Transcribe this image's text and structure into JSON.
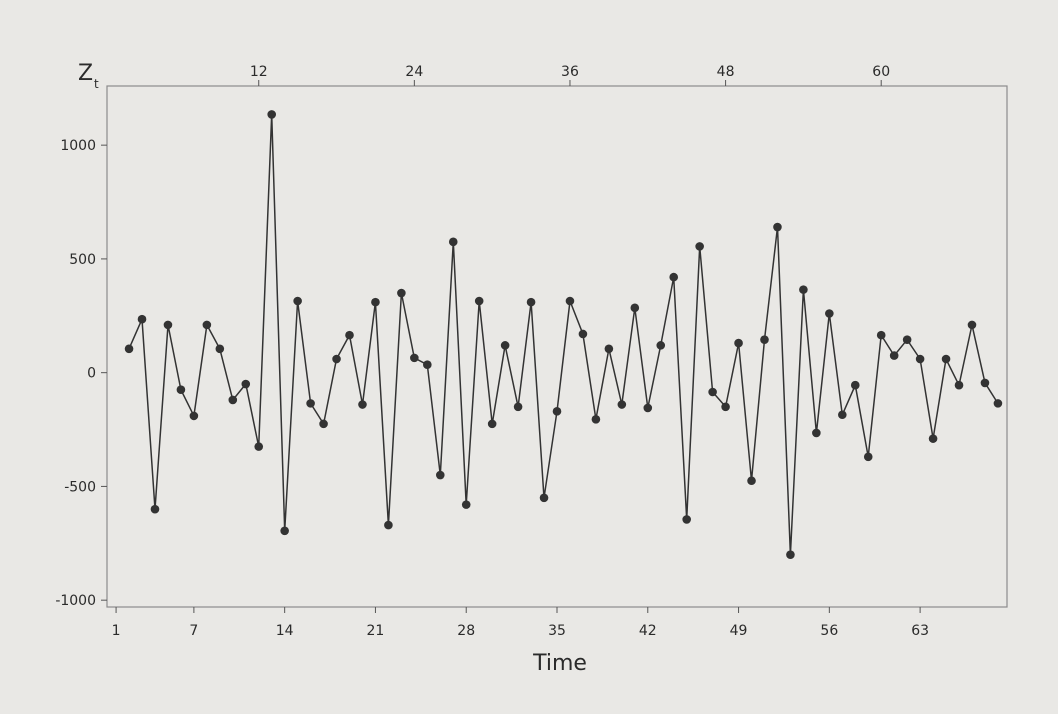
{
  "chart_data": {
    "type": "line",
    "ylabel_main": "Z",
    "ylabel_sub": "t",
    "xlabel": "Time",
    "x_bottom_ticks": [
      1,
      7,
      14,
      21,
      28,
      35,
      42,
      49,
      56,
      63
    ],
    "x_top_ticks": [
      12,
      24,
      36,
      48,
      60
    ],
    "y_ticks": [
      1000,
      500,
      0,
      -500,
      -1000
    ],
    "y_tick_labels": [
      "1000",
      "500",
      "0",
      "-500",
      "-1000"
    ],
    "xlim": [
      0.3,
      69.7
    ],
    "ylim": [
      -1030,
      1260
    ],
    "grid": false,
    "series": [
      {
        "x": [
          2,
          3,
          4,
          5,
          6,
          7,
          8,
          9,
          10,
          11,
          12,
          13,
          14,
          15,
          16,
          17,
          18,
          19,
          20,
          21,
          22,
          23,
          24,
          25,
          26,
          27,
          28,
          29,
          30,
          31,
          32,
          33,
          34,
          35,
          36,
          37,
          38,
          39,
          40,
          41,
          42,
          43,
          44,
          45,
          46,
          47,
          48,
          49,
          50,
          51,
          52,
          53,
          54,
          55,
          56,
          57,
          58,
          59,
          60,
          61,
          62,
          63,
          64,
          65,
          66,
          67,
          68,
          69
        ],
        "values": [
          105,
          235,
          -600,
          210,
          -75,
          -190,
          210,
          105,
          -120,
          -50,
          -325,
          1135,
          -695,
          315,
          -135,
          -225,
          60,
          165,
          -140,
          310,
          -670,
          350,
          65,
          35,
          -450,
          575,
          -580,
          315,
          -225,
          120,
          -150,
          310,
          -550,
          -170,
          315,
          170,
          -205,
          105,
          -140,
          285,
          -155,
          120,
          420,
          -645,
          555,
          -85,
          -150,
          130,
          -475,
          145,
          640,
          -800,
          365,
          -265,
          260,
          -185,
          -55,
          -370,
          165,
          75,
          145,
          60,
          -290,
          60,
          -55,
          210,
          -45,
          -135
        ]
      }
    ]
  }
}
